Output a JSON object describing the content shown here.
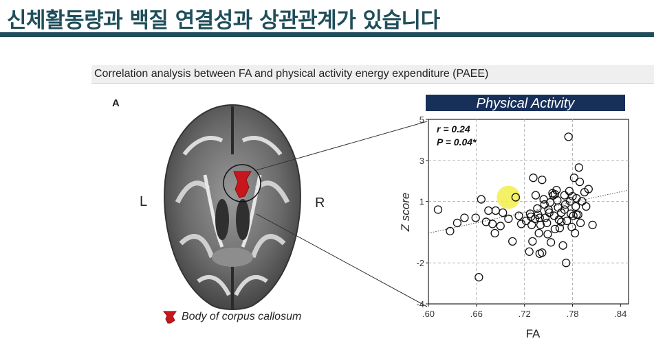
{
  "slide": {
    "title": "신체활동량과 백질 연결성과 상관관계가 있습니다",
    "accent_color": "#1f4e5a"
  },
  "figure": {
    "caption": "Correlation analysis between FA and physical activity energy expenditure (PAEE)",
    "panel_letter": "A",
    "left_label": "L",
    "right_label": "R",
    "legend_label": "Body of corpus callosum",
    "roi_color": "#c8161d"
  },
  "chart_data": {
    "type": "scatter",
    "title": "Physical Activity",
    "title_band_color": "#16305a",
    "xlabel": "FA",
    "ylabel": "Z score",
    "xlim": [
      0.6,
      0.85
    ],
    "ylim": [
      -4,
      5
    ],
    "xticks": [
      ".60",
      ".66",
      ".72",
      ".78",
      ".84"
    ],
    "xtick_values": [
      0.6,
      0.66,
      0.72,
      0.78,
      0.84
    ],
    "yticks": [
      "5",
      "3",
      "1",
      "-2",
      "-4"
    ],
    "ytick_values": [
      5,
      3,
      1,
      -2,
      -4
    ],
    "grid": "dashed",
    "stats": {
      "r": "r = 0.24",
      "p": "P = 0.04*"
    },
    "trend": {
      "x": [
        0.6,
        0.85
      ],
      "y": [
        -0.55,
        1.55
      ]
    },
    "highlight": {
      "x": 0.7,
      "y": 1.2,
      "color": "#f2ee4c"
    },
    "points": [
      {
        "x": 0.612,
        "y": 0.6
      },
      {
        "x": 0.627,
        "y": -0.45
      },
      {
        "x": 0.636,
        "y": -0.05
      },
      {
        "x": 0.645,
        "y": 0.2
      },
      {
        "x": 0.659,
        "y": 0.2
      },
      {
        "x": 0.666,
        "y": 1.1
      },
      {
        "x": 0.663,
        "y": -2.7
      },
      {
        "x": 0.672,
        "y": 0.0
      },
      {
        "x": 0.675,
        "y": 0.55
      },
      {
        "x": 0.68,
        "y": -0.1
      },
      {
        "x": 0.683,
        "y": -0.55
      },
      {
        "x": 0.684,
        "y": 0.55
      },
      {
        "x": 0.69,
        "y": -0.2
      },
      {
        "x": 0.693,
        "y": 0.45
      },
      {
        "x": 0.7,
        "y": 0.15
      },
      {
        "x": 0.705,
        "y": -0.95
      },
      {
        "x": 0.709,
        "y": 1.2
      },
      {
        "x": 0.713,
        "y": 0.3
      },
      {
        "x": 0.716,
        "y": -0.1
      },
      {
        "x": 0.722,
        "y": 0.05
      },
      {
        "x": 0.727,
        "y": 0.4
      },
      {
        "x": 0.728,
        "y": 0.25
      },
      {
        "x": 0.729,
        "y": -0.15
      },
      {
        "x": 0.73,
        "y": -0.95
      },
      {
        "x": 0.731,
        "y": 2.15
      },
      {
        "x": 0.734,
        "y": 1.3
      },
      {
        "x": 0.736,
        "y": 0.65
      },
      {
        "x": 0.737,
        "y": 0.35
      },
      {
        "x": 0.738,
        "y": -0.55
      },
      {
        "x": 0.739,
        "y": -1.55
      },
      {
        "x": 0.74,
        "y": -0.15
      },
      {
        "x": 0.742,
        "y": 2.05
      },
      {
        "x": 0.744,
        "y": 1.1
      },
      {
        "x": 0.745,
        "y": 0.85
      },
      {
        "x": 0.746,
        "y": 0.2
      },
      {
        "x": 0.748,
        "y": -0.05
      },
      {
        "x": 0.749,
        "y": -0.6
      },
      {
        "x": 0.75,
        "y": 0.6
      },
      {
        "x": 0.752,
        "y": 0.95
      },
      {
        "x": 0.753,
        "y": -1.0
      },
      {
        "x": 0.755,
        "y": 1.4
      },
      {
        "x": 0.756,
        "y": 1.3
      },
      {
        "x": 0.757,
        "y": 0.3
      },
      {
        "x": 0.758,
        "y": -0.35
      },
      {
        "x": 0.76,
        "y": 1.55
      },
      {
        "x": 0.761,
        "y": 1.05
      },
      {
        "x": 0.762,
        "y": 0.7
      },
      {
        "x": 0.763,
        "y": 0.1
      },
      {
        "x": 0.764,
        "y": -0.3
      },
      {
        "x": 0.766,
        "y": 0.45
      },
      {
        "x": 0.768,
        "y": -1.15
      },
      {
        "x": 0.77,
        "y": 1.3
      },
      {
        "x": 0.771,
        "y": 0.85
      },
      {
        "x": 0.772,
        "y": -2.0
      },
      {
        "x": 0.773,
        "y": 0.05
      },
      {
        "x": 0.775,
        "y": 4.15
      },
      {
        "x": 0.776,
        "y": 1.5
      },
      {
        "x": 0.777,
        "y": 1.0
      },
      {
        "x": 0.778,
        "y": 0.4
      },
      {
        "x": 0.779,
        "y": -0.25
      },
      {
        "x": 0.78,
        "y": 1.25
      },
      {
        "x": 0.781,
        "y": 0.3
      },
      {
        "x": 0.782,
        "y": 2.15
      },
      {
        "x": 0.783,
        "y": -0.55
      },
      {
        "x": 0.784,
        "y": 0.75
      },
      {
        "x": 0.785,
        "y": 1.15
      },
      {
        "x": 0.787,
        "y": 0.35
      },
      {
        "x": 0.788,
        "y": 2.65
      },
      {
        "x": 0.789,
        "y": 1.95
      },
      {
        "x": 0.79,
        "y": -0.05
      },
      {
        "x": 0.792,
        "y": 1.0
      },
      {
        "x": 0.795,
        "y": 1.45
      },
      {
        "x": 0.797,
        "y": 0.75
      },
      {
        "x": 0.8,
        "y": 1.6
      },
      {
        "x": 0.805,
        "y": -0.15
      },
      {
        "x": 0.726,
        "y": -1.45
      },
      {
        "x": 0.742,
        "y": -1.5
      },
      {
        "x": 0.758,
        "y": 1.35
      },
      {
        "x": 0.766,
        "y": 0.0
      },
      {
        "x": 0.739,
        "y": 0.2
      },
      {
        "x": 0.751,
        "y": 0.45
      },
      {
        "x": 0.77,
        "y": 0.6
      },
      {
        "x": 0.785,
        "y": 0.35
      },
      {
        "x": 0.733,
        "y": 0.15
      }
    ]
  }
}
